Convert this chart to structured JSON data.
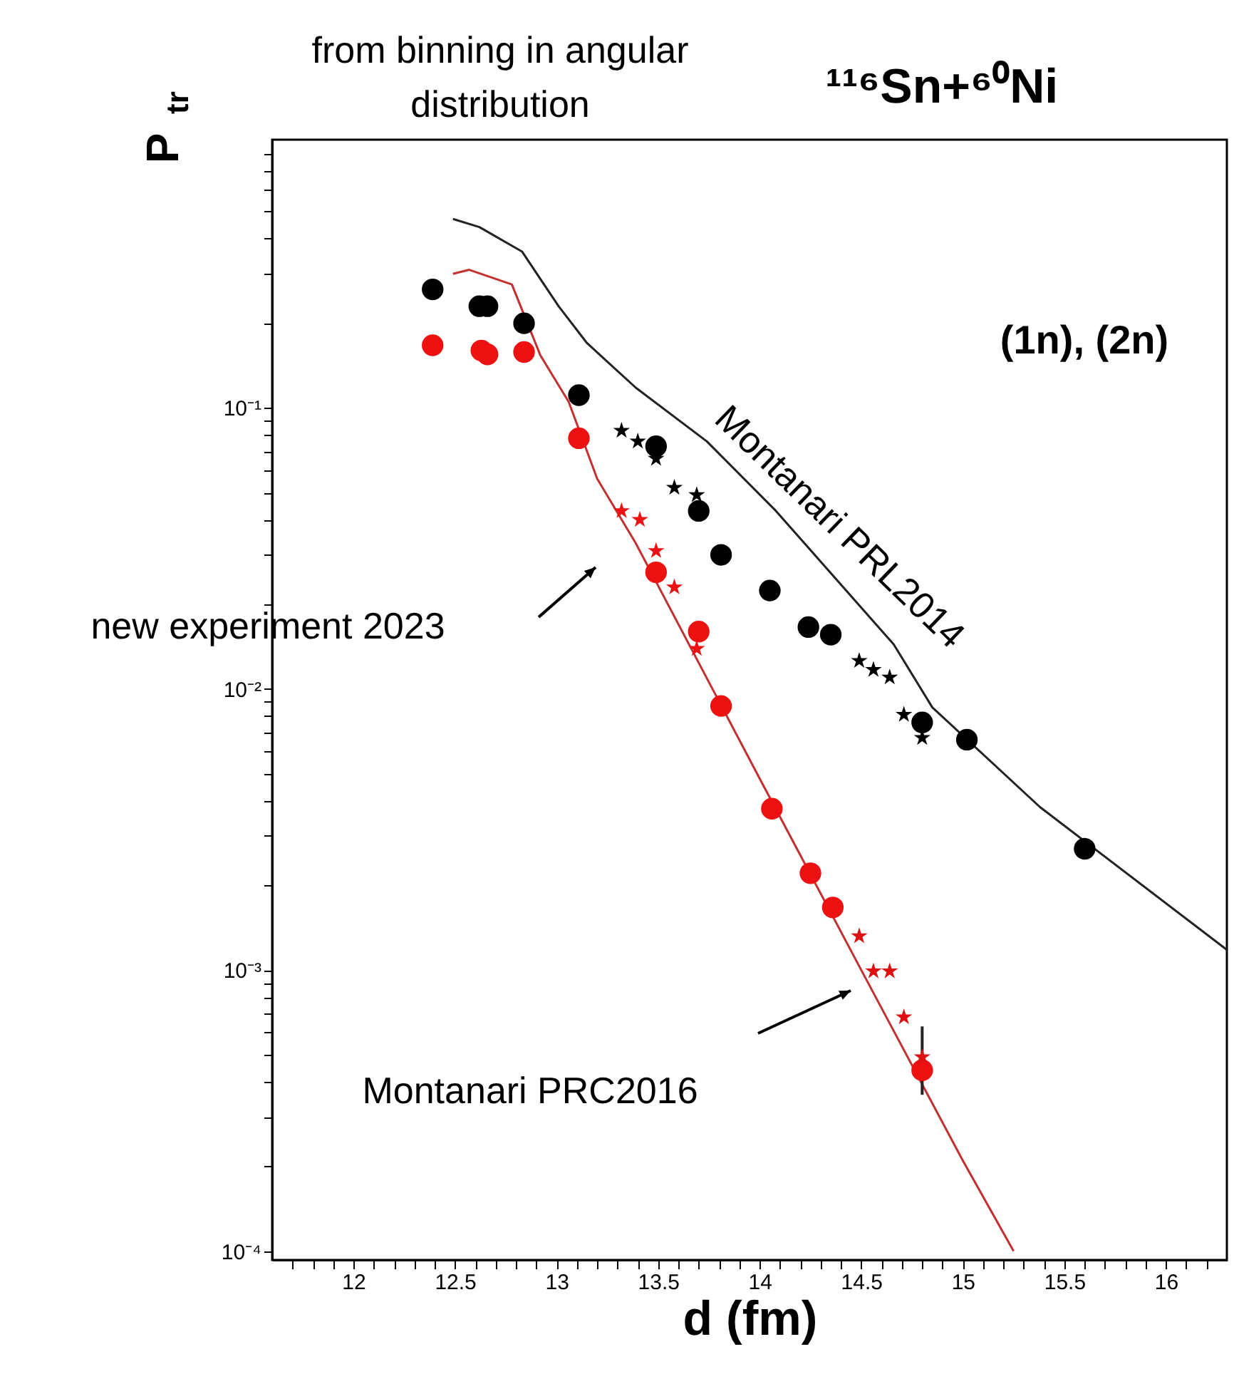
{
  "chart_data": {
    "type": "scatter",
    "title": "¹¹⁶Sn+⁶⁰Ni",
    "xlabel": "d (fm)",
    "ylabel": "P$_{tr}$",
    "log": "y",
    "grid": false,
    "xlim": [
      11.6,
      16.3
    ],
    "ylim": [
      9.3e-05,
      0.9
    ],
    "xticks": [
      {
        "value": 11.7,
        "label": null
      },
      {
        "value": 11.8,
        "label": null
      },
      {
        "value": 11.9,
        "label": null
      },
      12,
      {
        "value": 12.1,
        "label": null
      },
      {
        "value": 12.2,
        "label": null
      },
      {
        "value": 12.3,
        "label": null
      },
      {
        "value": 12.4,
        "label": null
      },
      12.5,
      {
        "value": 12.6,
        "label": null
      },
      {
        "value": 12.7,
        "label": null
      },
      {
        "value": 12.8,
        "label": null
      },
      {
        "value": 12.9,
        "label": null
      },
      13,
      {
        "value": 13.1,
        "label": null
      },
      {
        "value": 13.2,
        "label": null
      },
      {
        "value": 13.3,
        "label": null
      },
      {
        "value": 13.4,
        "label": null
      },
      13.5,
      {
        "value": 13.6,
        "label": null
      },
      {
        "value": 13.7,
        "label": null
      },
      {
        "value": 13.8,
        "label": null
      },
      {
        "value": 13.9,
        "label": null
      },
      14,
      {
        "value": 14.1,
        "label": null
      },
      {
        "value": 14.2,
        "label": null
      },
      {
        "value": 14.3,
        "label": null
      },
      {
        "value": 14.4,
        "label": null
      },
      14.5,
      {
        "value": 14.6,
        "label": null
      },
      {
        "value": 14.7,
        "label": null
      },
      {
        "value": 14.8,
        "label": null
      },
      {
        "value": 14.9,
        "label": null
      },
      15,
      {
        "value": 15.1,
        "label": null
      },
      {
        "value": 15.2,
        "label": null
      },
      {
        "value": 15.3,
        "label": null
      },
      {
        "value": 15.4,
        "label": null
      },
      15.5,
      {
        "value": 15.6,
        "label": null
      },
      {
        "value": 15.7,
        "label": null
      },
      {
        "value": 15.8,
        "label": null
      },
      {
        "value": 15.9,
        "label": null
      },
      16,
      {
        "value": 16.1,
        "label": null
      },
      {
        "value": 16.2,
        "label": null
      }
    ],
    "yticks": [
      {
        "value": 0.0001,
        "label": "10⁻⁴"
      },
      {
        "value": 0.0002,
        "label": null
      },
      {
        "value": 0.0003,
        "label": null
      },
      {
        "value": 0.0004,
        "label": null
      },
      {
        "value": 0.0005,
        "label": null
      },
      {
        "value": 0.0006,
        "label": null
      },
      {
        "value": 0.0007,
        "label": null
      },
      {
        "value": 0.0008,
        "label": null
      },
      {
        "value": 0.0009,
        "label": null
      },
      {
        "value": 0.001,
        "label": "10⁻³"
      },
      {
        "value": 0.002,
        "label": null
      },
      {
        "value": 0.003,
        "label": null
      },
      {
        "value": 0.004,
        "label": null
      },
      {
        "value": 0.005,
        "label": null
      },
      {
        "value": 0.006,
        "label": null
      },
      {
        "value": 0.007,
        "label": null
      },
      {
        "value": 0.008,
        "label": null
      },
      {
        "value": 0.009,
        "label": null
      },
      {
        "value": 0.01,
        "label": "10⁻²"
      },
      {
        "value": 0.02,
        "label": null
      },
      {
        "value": 0.03,
        "label": null
      },
      {
        "value": 0.04,
        "label": null
      },
      {
        "value": 0.05,
        "label": null
      },
      {
        "value": 0.06,
        "label": null
      },
      {
        "value": 0.07,
        "label": null
      },
      {
        "value": 0.08,
        "label": null
      },
      {
        "value": 0.09,
        "label": null
      },
      {
        "value": 0.1,
        "label": "10⁻¹"
      },
      {
        "value": 0.2,
        "label": null
      },
      {
        "value": 0.3,
        "label": null
      },
      {
        "value": 0.4,
        "label": null
      },
      {
        "value": 0.5,
        "label": null
      },
      {
        "value": 0.6,
        "label": null
      },
      {
        "value": 0.7,
        "label": null
      },
      {
        "value": 0.8,
        "label": null
      }
    ],
    "series": [
      {
        "type": "line",
        "color": "#222222",
        "line_style": "solid",
        "marker": "none",
        "x": [
          12.49,
          12.62,
          12.83,
          13.01,
          13.15,
          13.39,
          13.74,
          14.08,
          14.66,
          14.85,
          15.38,
          16.3
        ],
        "values": [
          0.47,
          0.44,
          0.36,
          0.23,
          0.17,
          0.118,
          0.076,
          0.043,
          0.0144,
          0.0086,
          0.0038,
          0.00118
        ]
      },
      {
        "type": "line",
        "color": "#c43030",
        "line_style": "solid",
        "marker": "none",
        "x": [
          12.49,
          12.57,
          12.78,
          12.92,
          13.06,
          13.2,
          13.39,
          14.0,
          14.5,
          15.0,
          15.25
        ],
        "values": [
          0.3,
          0.31,
          0.275,
          0.154,
          0.105,
          0.056,
          0.033,
          0.0048,
          0.001,
          0.00021,
          0.0001
        ]
      },
      {
        "color": "#000000",
        "marker": "circle",
        "x": [
          12.39,
          12.62,
          12.66,
          12.84,
          13.11,
          13.49,
          13.7,
          13.81,
          14.05,
          14.24,
          14.35,
          14.8,
          15.02,
          15.6
        ],
        "values": [
          0.264,
          0.23,
          0.23,
          0.2,
          0.111,
          0.073,
          0.043,
          0.03,
          0.0224,
          0.0166,
          0.0156,
          0.0076,
          0.0066,
          0.0027
        ]
      },
      {
        "color": "#ee1111",
        "marker": "circle",
        "x": [
          12.39,
          12.63,
          12.66,
          12.84,
          13.11,
          13.49,
          13.7,
          13.81,
          14.06,
          14.25,
          14.36,
          14.8
        ],
        "values": [
          0.167,
          0.16,
          0.155,
          0.158,
          0.078,
          0.026,
          0.016,
          0.0087,
          0.00375,
          0.00221,
          0.00167,
          0.00044
        ],
        "errors": [
          null,
          null,
          null,
          null,
          null,
          null,
          null,
          null,
          null,
          null,
          null,
          [
            0.00036,
            0.00063
          ]
        ]
      },
      {
        "color": "#000000",
        "marker": "star",
        "x": [
          13.32,
          13.4,
          13.49,
          13.58,
          13.69
        ],
        "values": [
          0.083,
          0.076,
          0.066,
          0.052,
          0.049
        ]
      },
      {
        "color": "#ee1111",
        "marker": "star",
        "x": [
          13.32,
          13.41,
          13.49,
          13.58,
          13.69
        ],
        "values": [
          0.043,
          0.04,
          0.031,
          0.023,
          0.0139
        ]
      },
      {
        "color": "#000000",
        "marker": "star",
        "x": [
          14.49,
          14.56,
          14.64,
          14.71,
          14.8
        ],
        "values": [
          0.0126,
          0.0117,
          0.011,
          0.0081,
          0.0067
        ]
      },
      {
        "color": "#dd1111",
        "marker": "star",
        "x": [
          14.49,
          14.56,
          14.64,
          14.71,
          14.8
        ],
        "values": [
          0.00132,
          0.00099,
          0.00099,
          0.00068,
          0.00049
        ]
      }
    ],
    "annotations": [
      "from binning in angular distribution",
      "(1n), (2n)",
      "Montanari PRL2014",
      "new experiment 2023",
      "Montanari PRC2016"
    ]
  }
}
